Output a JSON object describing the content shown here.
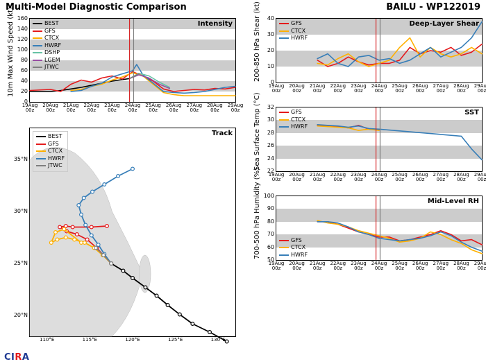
{
  "title_left": "Multi-Model Diagnostic Comparison",
  "title_right": "BAILU - WP122019",
  "footer_logo": "CIRA",
  "colors": {
    "BEST": "#000000",
    "GFS": "#e41a1c",
    "CTCX": "#ffb000",
    "HWRF": "#377eb8",
    "DSHP": "#66c2a5",
    "LGEM": "#984ea3",
    "JTWC": "#7f7f7f",
    "grid_band": "#cccccc",
    "nowline1": "#d62728",
    "nowline2": "#7f7f7f",
    "bg": "#ffffff"
  },
  "time_axis": {
    "ticks": [
      "19Aug 00z",
      "20Aug 00z",
      "21Aug 00z",
      "22Aug 00z",
      "23Aug 00z",
      "24Aug 00z",
      "25Aug 00z",
      "26Aug 00z",
      "27Aug 00z",
      "28Aug 00z",
      "29Aug 00z"
    ],
    "now_primary": 4.85,
    "now_secondary": 5.05
  },
  "intensity": {
    "title": "Intensity",
    "ylabel": "10m Max Wind Speed (kt)",
    "ylim": [
      0,
      160
    ],
    "ytick_step": 20,
    "legend": [
      "BEST",
      "GFS",
      "CTCX",
      "HWRF",
      "DSHP",
      "LGEM",
      "JTWC"
    ],
    "series": {
      "BEST": [
        [
          0,
          20
        ],
        [
          0.5,
          20
        ],
        [
          1,
          20
        ],
        [
          1.5,
          22
        ],
        [
          2,
          25
        ],
        [
          2.5,
          28
        ],
        [
          3,
          32
        ],
        [
          3.5,
          36
        ],
        [
          4,
          40
        ],
        [
          4.5,
          43
        ],
        [
          4.85,
          45
        ]
      ],
      "GFS": [
        [
          0,
          22
        ],
        [
          1,
          24
        ],
        [
          1.5,
          20
        ],
        [
          2,
          34
        ],
        [
          2.5,
          42
        ],
        [
          3,
          38
        ],
        [
          3.5,
          46
        ],
        [
          4,
          50
        ],
        [
          4.5,
          44
        ],
        [
          5,
          58
        ],
        [
          5.5,
          50
        ],
        [
          6,
          40
        ],
        [
          6.5,
          25
        ],
        [
          7,
          20
        ],
        [
          7.5,
          22
        ],
        [
          8,
          24
        ],
        [
          8.5,
          23
        ],
        [
          9,
          26
        ],
        [
          9.5,
          25
        ],
        [
          10,
          28
        ]
      ],
      "CTCX": [
        [
          2,
          22
        ],
        [
          2.5,
          24
        ],
        [
          3,
          30
        ],
        [
          3.5,
          34
        ],
        [
          4,
          42
        ],
        [
          4.5,
          48
        ],
        [
          5,
          56
        ],
        [
          5.5,
          50
        ],
        [
          6,
          34
        ],
        [
          6.5,
          18
        ],
        [
          7,
          14
        ],
        [
          7.5,
          12
        ],
        [
          8,
          12
        ],
        [
          8.5,
          12
        ],
        [
          9,
          12
        ],
        [
          9.5,
          12
        ],
        [
          10,
          12
        ]
      ],
      "HWRF": [
        [
          2,
          20
        ],
        [
          2.5,
          22
        ],
        [
          3,
          30
        ],
        [
          3.5,
          36
        ],
        [
          4,
          48
        ],
        [
          4.5,
          54
        ],
        [
          5,
          60
        ],
        [
          5.2,
          72
        ],
        [
          5.5,
          52
        ],
        [
          6,
          36
        ],
        [
          6.5,
          20
        ],
        [
          7,
          18
        ],
        [
          7.5,
          17
        ],
        [
          8,
          18
        ],
        [
          8.5,
          20
        ],
        [
          9,
          24
        ],
        [
          9.5,
          28
        ],
        [
          10,
          30
        ]
      ],
      "DSHP": [
        [
          4.85,
          45
        ],
        [
          5.3,
          55
        ],
        [
          5.8,
          50
        ],
        [
          6.3,
          38
        ],
        [
          6.8,
          28
        ]
      ],
      "LGEM": [
        [
          4.85,
          45
        ],
        [
          5.3,
          52
        ],
        [
          5.8,
          46
        ],
        [
          6.3,
          34
        ],
        [
          6.8,
          26
        ]
      ],
      "JTWC": [
        [
          4.85,
          45
        ],
        [
          5.3,
          54
        ]
      ]
    }
  },
  "track": {
    "title": "Track",
    "legend": [
      "BEST",
      "GFS",
      "CTCX",
      "HWRF",
      "JTWC"
    ],
    "xlim": [
      108,
      132
    ],
    "xtick_step": 5,
    "ylim": [
      18,
      38
    ],
    "ytick_step": 5,
    "series": {
      "BEST": [
        [
          131,
          17.5
        ],
        [
          129,
          18.4
        ],
        [
          127,
          19.2
        ],
        [
          125.5,
          20.1
        ],
        [
          124.1,
          21.0
        ],
        [
          122.8,
          21.9
        ],
        [
          121.5,
          22.7
        ],
        [
          120,
          23.6
        ],
        [
          118.9,
          24.3
        ],
        [
          117.5,
          25.0
        ]
      ],
      "GFS": [
        [
          117.5,
          25.0
        ],
        [
          116.6,
          25.8
        ],
        [
          115.8,
          26.5
        ],
        [
          114.7,
          27.3
        ],
        [
          113.5,
          27.8
        ],
        [
          112.3,
          28.1
        ],
        [
          111.5,
          28.5
        ],
        [
          112.2,
          28.6
        ],
        [
          113.0,
          28.5
        ],
        [
          115.2,
          28.5
        ],
        [
          117.0,
          28.6
        ]
      ],
      "CTCX": [
        [
          117.5,
          25.0
        ],
        [
          116.5,
          25.8
        ],
        [
          115.5,
          26.5
        ],
        [
          114.4,
          27.0
        ],
        [
          113.2,
          27.3
        ],
        [
          112.2,
          27.5
        ],
        [
          111.2,
          27.3
        ],
        [
          110.5,
          27.0
        ],
        [
          111.0,
          28.0
        ],
        [
          112.0,
          28.3
        ],
        [
          114.0,
          27.0
        ]
      ],
      "HWRF": [
        [
          117.5,
          25.0
        ],
        [
          116.7,
          25.9
        ],
        [
          116.0,
          26.8
        ],
        [
          115.2,
          27.7
        ],
        [
          114.5,
          28.7
        ],
        [
          114.0,
          29.7
        ],
        [
          113.7,
          30.6
        ],
        [
          114.3,
          31.3
        ],
        [
          115.3,
          31.9
        ],
        [
          116.7,
          32.6
        ],
        [
          118.3,
          33.4
        ],
        [
          120.0,
          34.1
        ]
      ],
      "JTWC": [
        [
          117.5,
          25.0
        ],
        [
          116.6,
          25.8
        ],
        [
          115.7,
          26.5
        ]
      ]
    }
  },
  "shear": {
    "title": "Deep-Layer Shear",
    "ylabel": "200-850 hPa Shear (kt)",
    "ylim": [
      0,
      40
    ],
    "ytick_step": 10,
    "legend": [
      "GFS",
      "CTCX",
      "HWRF"
    ],
    "series": {
      "GFS": [
        [
          2,
          14
        ],
        [
          2.5,
          10
        ],
        [
          3,
          12
        ],
        [
          3.5,
          16
        ],
        [
          4,
          13
        ],
        [
          4.5,
          11
        ],
        [
          5,
          12
        ],
        [
          5.5,
          12
        ],
        [
          6,
          14
        ],
        [
          6.5,
          22
        ],
        [
          7,
          18
        ],
        [
          7.5,
          20
        ],
        [
          8,
          19
        ],
        [
          8.5,
          22
        ],
        [
          9,
          17
        ],
        [
          9.5,
          19
        ],
        [
          10,
          24
        ]
      ],
      "CTCX": [
        [
          2,
          12
        ],
        [
          2.5,
          11
        ],
        [
          3,
          15
        ],
        [
          3.5,
          18
        ],
        [
          4,
          13
        ],
        [
          4.5,
          10
        ],
        [
          5,
          12
        ],
        [
          5.5,
          14
        ],
        [
          6,
          22
        ],
        [
          6.5,
          28
        ],
        [
          7,
          16
        ],
        [
          7.5,
          22
        ],
        [
          8,
          18
        ],
        [
          8.5,
          16
        ],
        [
          9,
          18
        ],
        [
          9.5,
          22
        ],
        [
          10,
          18
        ]
      ],
      "HWRF": [
        [
          2,
          15
        ],
        [
          2.5,
          18
        ],
        [
          3,
          12
        ],
        [
          3.5,
          10
        ],
        [
          4,
          16
        ],
        [
          4.5,
          17
        ],
        [
          5,
          14
        ],
        [
          5.5,
          15
        ],
        [
          6,
          12
        ],
        [
          6.5,
          14
        ],
        [
          7,
          18
        ],
        [
          7.5,
          22
        ],
        [
          8,
          16
        ],
        [
          8.5,
          19
        ],
        [
          9,
          22
        ],
        [
          9.5,
          28
        ],
        [
          10,
          38
        ]
      ]
    }
  },
  "sst": {
    "title": "SST",
    "ylabel": "Sea Surface Temp (°C)",
    "ylim": [
      22,
      32
    ],
    "ytick_step": 2,
    "legend": [
      "GFS",
      "CTCX",
      "HWRF"
    ],
    "series": {
      "GFS": [
        [
          2,
          29.2
        ],
        [
          2.5,
          29.1
        ],
        [
          3,
          29.0
        ],
        [
          3.5,
          28.8
        ],
        [
          4,
          29.2
        ],
        [
          4.5,
          28.6
        ],
        [
          5,
          28.5
        ]
      ],
      "CTCX": [
        [
          2,
          29.1
        ],
        [
          2.5,
          29.0
        ],
        [
          3,
          28.9
        ],
        [
          3.5,
          28.8
        ],
        [
          4,
          28.4
        ],
        [
          4.5,
          28.6
        ],
        [
          5,
          28.4
        ]
      ],
      "HWRF": [
        [
          2,
          29.3
        ],
        [
          2.5,
          29.2
        ],
        [
          3,
          29.1
        ],
        [
          3.5,
          28.9
        ],
        [
          4,
          29.1
        ],
        [
          4.5,
          28.7
        ],
        [
          5,
          28.6
        ],
        [
          9,
          27.5
        ],
        [
          9.5,
          25.5
        ],
        [
          10,
          23.8
        ]
      ]
    }
  },
  "rh": {
    "title": "Mid-Level RH",
    "ylabel": "700-500 hPa Humidity (%)",
    "ylim": [
      50,
      100
    ],
    "ytick_step": 10,
    "legend": [
      "GFS",
      "CTCX",
      "HWRF"
    ],
    "series": {
      "GFS": [
        [
          2,
          80
        ],
        [
          2.5,
          80
        ],
        [
          3,
          78
        ],
        [
          3.5,
          75
        ],
        [
          4,
          72
        ],
        [
          4.5,
          70
        ],
        [
          5,
          68
        ],
        [
          5.5,
          68
        ],
        [
          6,
          65
        ],
        [
          6.5,
          66
        ],
        [
          7,
          68
        ],
        [
          7.5,
          70
        ],
        [
          8,
          73
        ],
        [
          8.5,
          70
        ],
        [
          9,
          65
        ],
        [
          9.5,
          66
        ],
        [
          10,
          62
        ]
      ],
      "CTCX": [
        [
          2,
          81
        ],
        [
          2.5,
          79
        ],
        [
          3,
          78
        ],
        [
          3.5,
          76
        ],
        [
          4,
          73
        ],
        [
          4.5,
          71
        ],
        [
          5,
          69
        ],
        [
          5.5,
          67
        ],
        [
          6,
          64
        ],
        [
          6.5,
          65
        ],
        [
          7,
          67
        ],
        [
          7.5,
          72
        ],
        [
          8,
          70
        ],
        [
          8.5,
          66
        ],
        [
          9,
          63
        ],
        [
          9.5,
          58
        ],
        [
          10,
          55
        ]
      ],
      "HWRF": [
        [
          2,
          80
        ],
        [
          2.5,
          80
        ],
        [
          3,
          79
        ],
        [
          3.5,
          76
        ],
        [
          4,
          72
        ],
        [
          4.5,
          70
        ],
        [
          5,
          67
        ],
        [
          5.5,
          66
        ],
        [
          6,
          65
        ],
        [
          6.5,
          66
        ],
        [
          7,
          67
        ],
        [
          7.5,
          69
        ],
        [
          8,
          72
        ],
        [
          8.5,
          69
        ],
        [
          9,
          64
        ],
        [
          9.5,
          60
        ],
        [
          10,
          57
        ]
      ]
    }
  }
}
